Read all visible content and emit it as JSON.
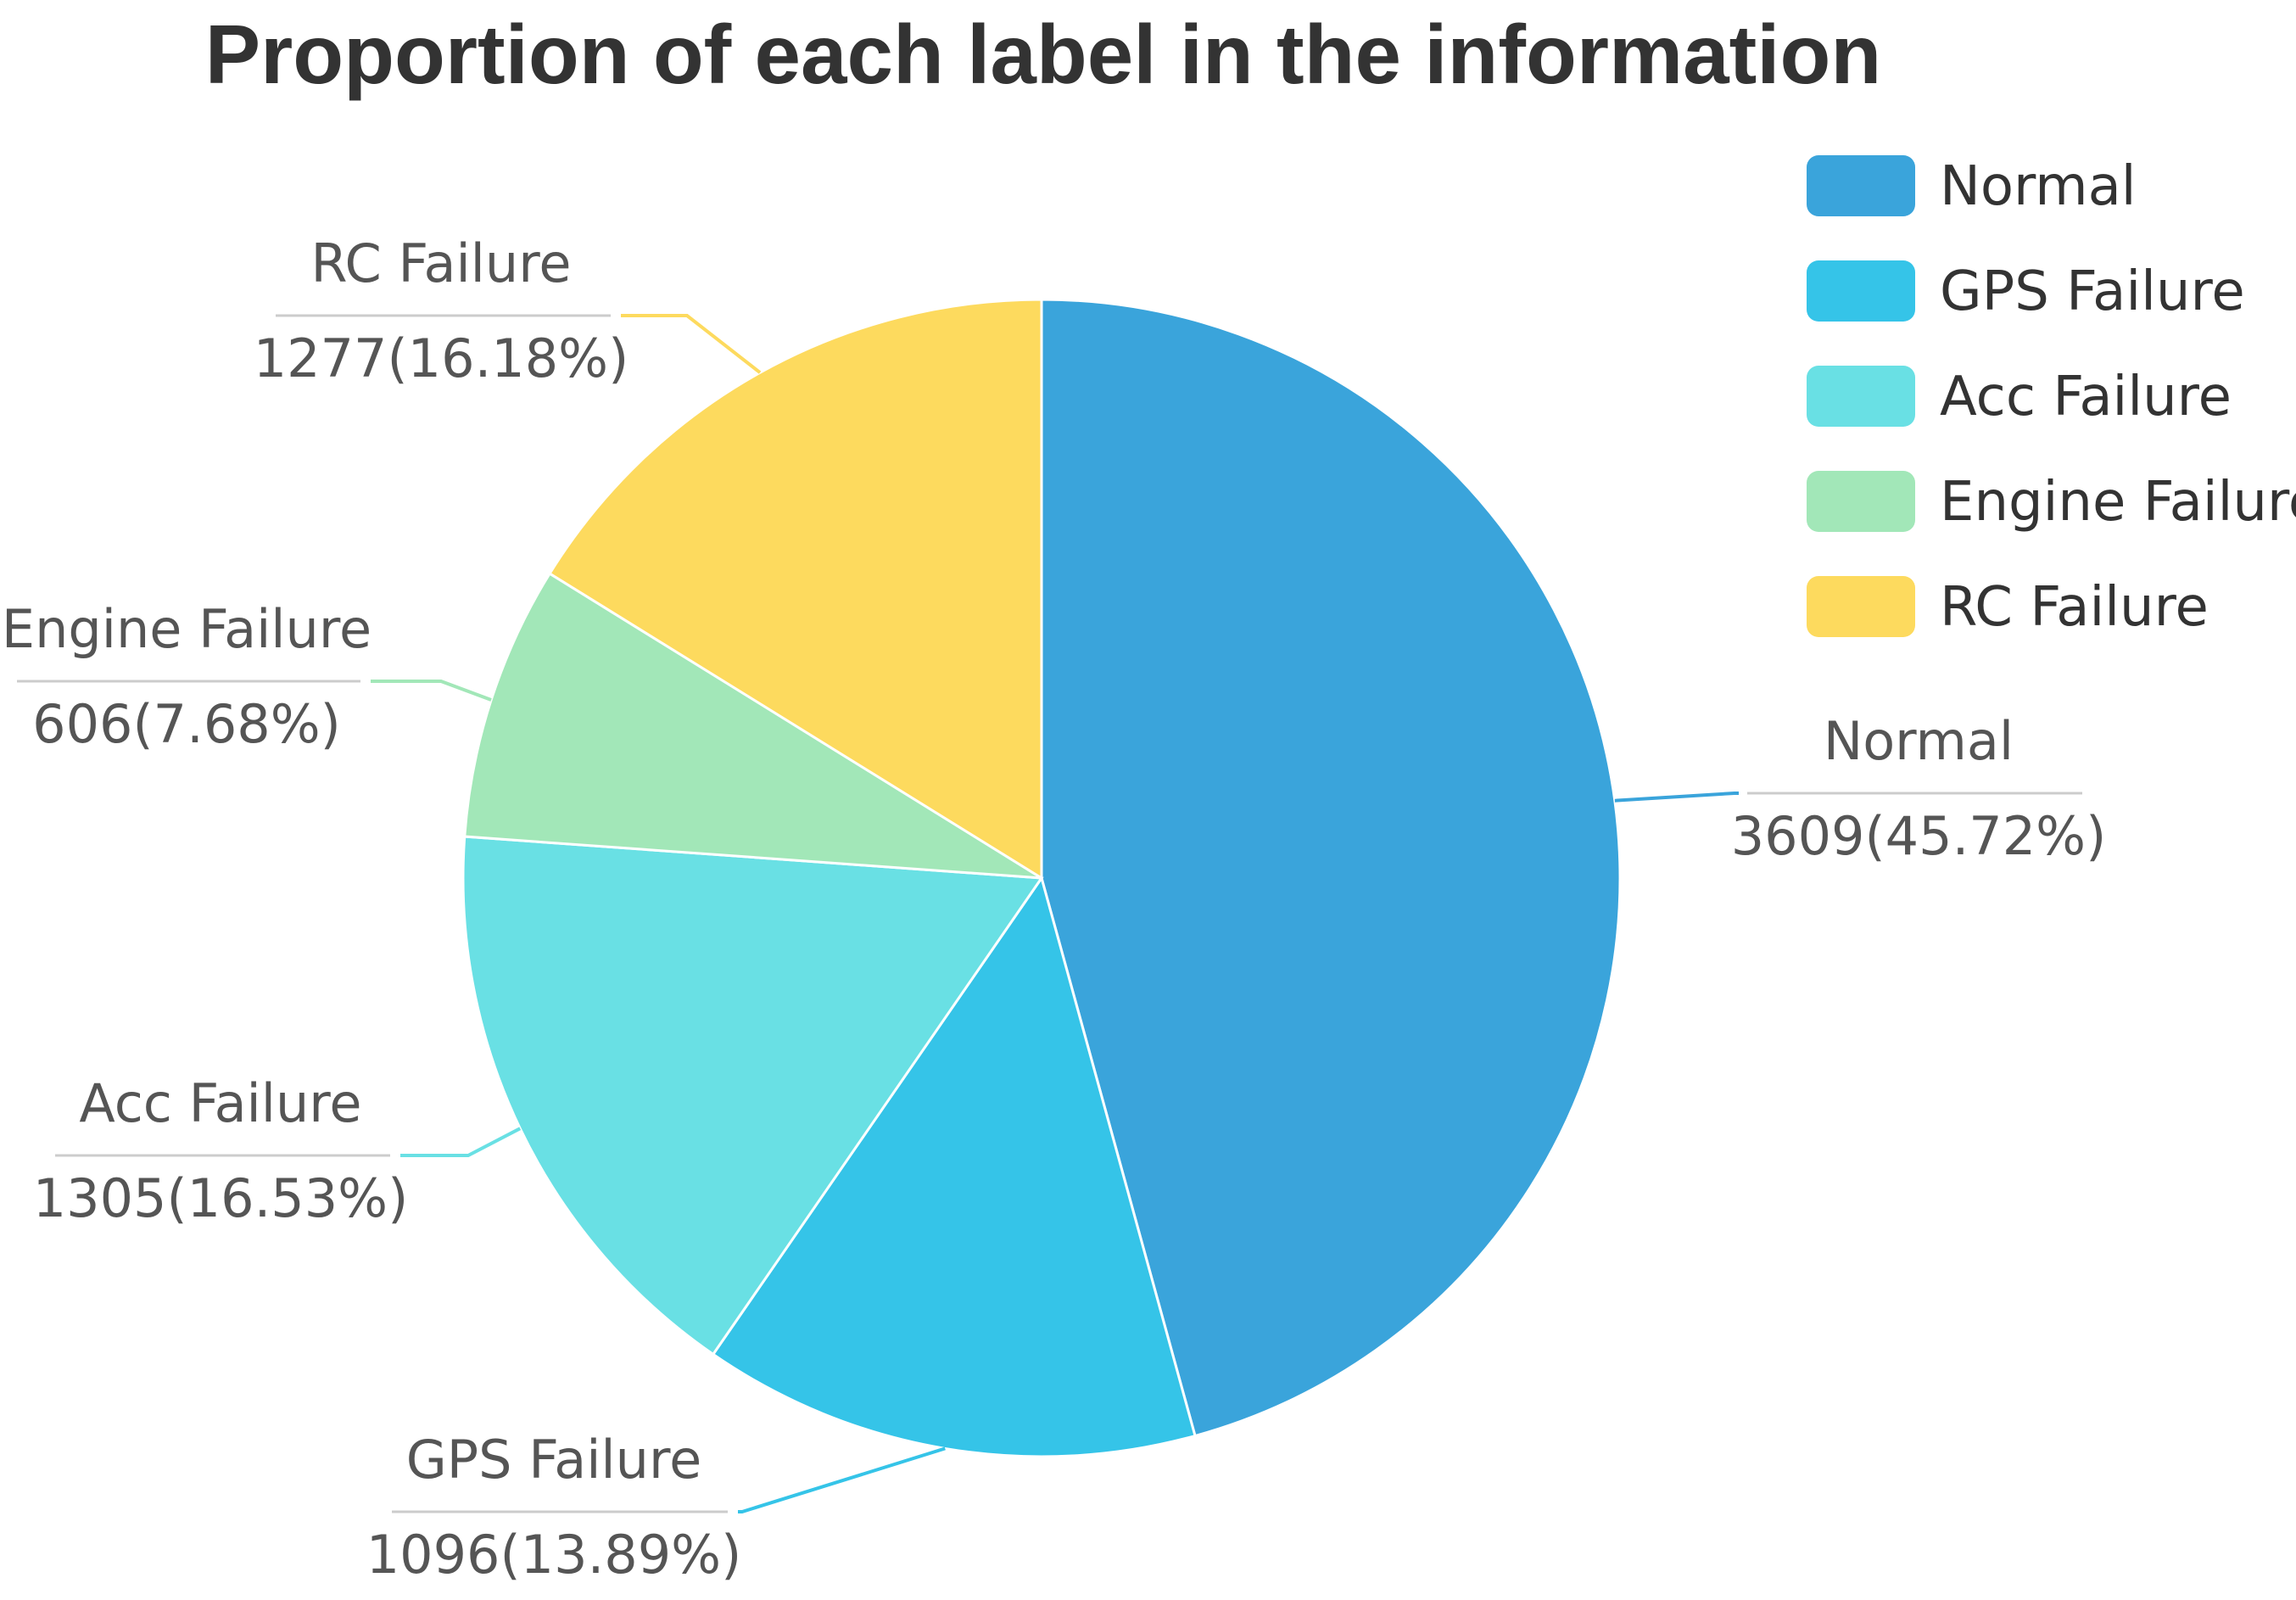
{
  "chart_data": {
    "type": "pie",
    "title": "Proportion of each label in the information",
    "slices": [
      {
        "name": "Normal",
        "value": 3609,
        "percent_label": "3609(45.72%)",
        "color": "#3AA4DB"
      },
      {
        "name": "GPS Failure",
        "value": 1096,
        "percent_label": "1096(13.89%)",
        "color": "#35C4E8"
      },
      {
        "name": "Acc Failure",
        "value": 1305,
        "percent_label": "1305(16.53%)",
        "color": "#69E0E4"
      },
      {
        "name": "Engine Failure",
        "value": 606,
        "percent_label": "606(7.68%)",
        "color": "#A2E7B8"
      },
      {
        "name": "RC Failure",
        "value": 1277,
        "percent_label": "1277(16.18%)",
        "color": "#FDDA5E"
      }
    ],
    "legend_position": "top-right",
    "start_angle": "12 o'clock",
    "direction": "clockwise"
  }
}
